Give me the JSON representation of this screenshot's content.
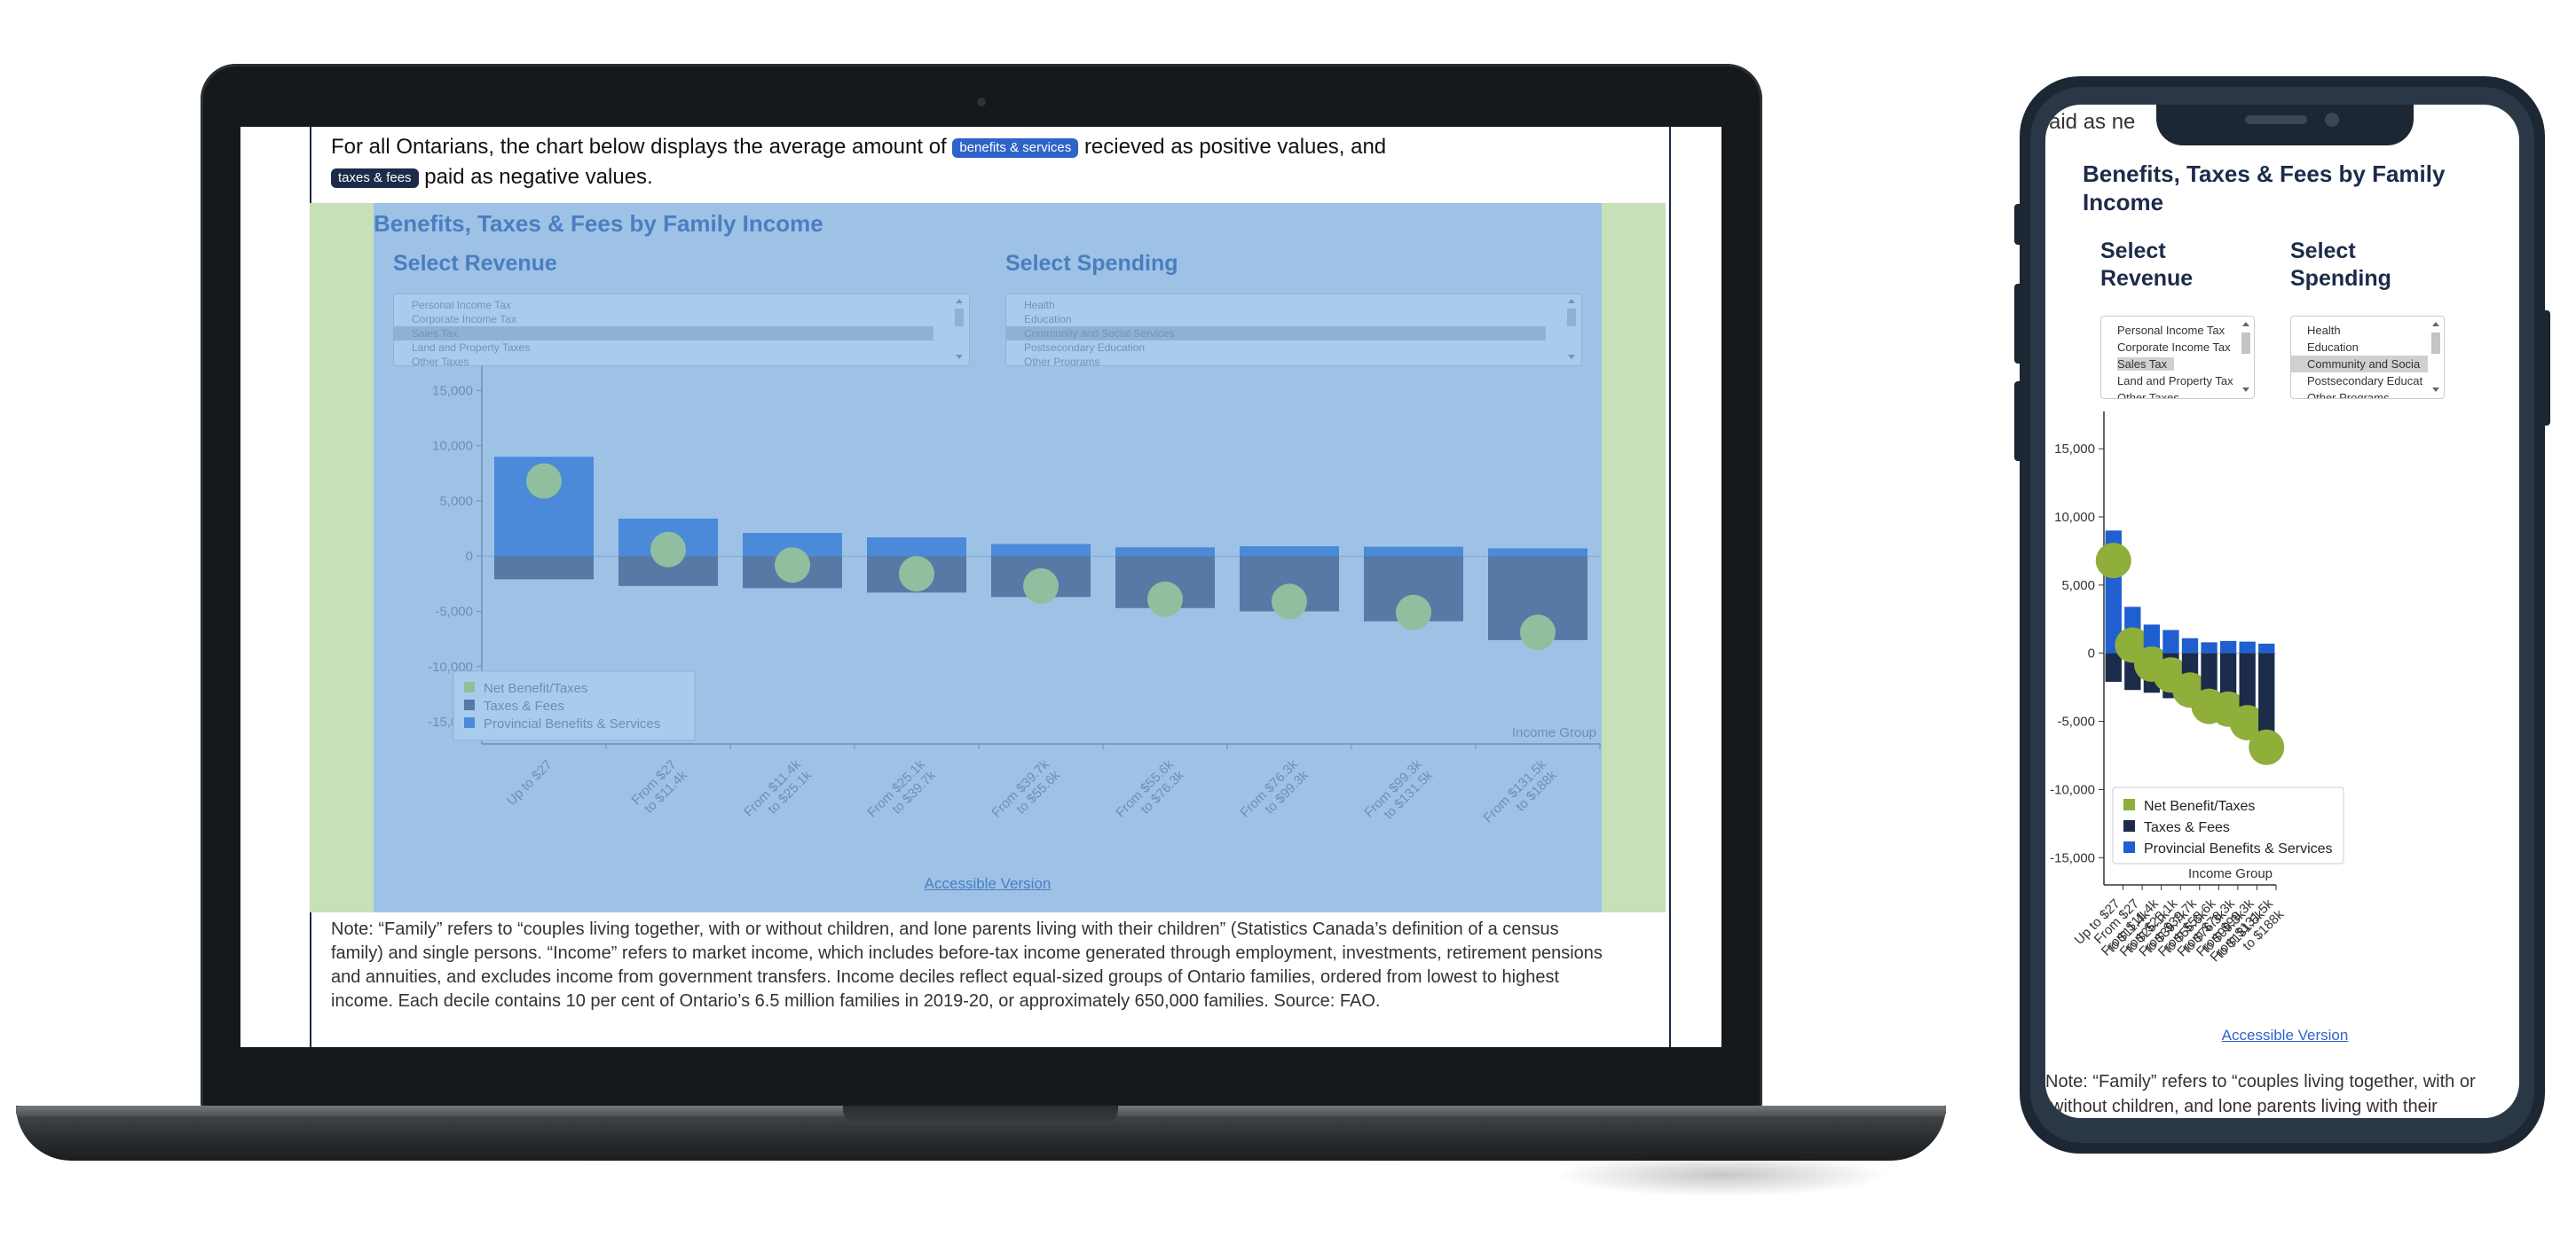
{
  "intro": {
    "p1": "For all Ontarians, the chart below displays the average amount of",
    "badge_benefits": "benefits & services",
    "p2": "recieved as positive values, and",
    "badge_taxes": "taxes & fees",
    "p3": "paid as negative values."
  },
  "chart_title": "Benefits, Taxes & Fees by Family Income",
  "revenue": {
    "label": "Select Revenue",
    "options": [
      "Personal Income Tax",
      "Corporate Income Tax",
      "Sales Tax",
      "Land and Property Taxes",
      "Other Taxes"
    ],
    "selected": "Sales Tax"
  },
  "spending": {
    "label": "Select Spending",
    "options": [
      "Health",
      "Education",
      "Community and Social Services",
      "Postsecondary Education",
      "Other Programs"
    ],
    "selected": "Community and Social Services"
  },
  "phone_revenue_label": [
    "Select",
    "Revenue"
  ],
  "phone_spending_label": [
    "Select",
    "Spending"
  ],
  "phone_title_lines": [
    "Benefits, Taxes & Fees by Family",
    "Income"
  ],
  "phone_spending_options": [
    "Health",
    "Education",
    "Community and Socia",
    "Postsecondary Educat",
    "Other Programs"
  ],
  "phone_revenue_options": [
    "Personal Income Tax",
    "Corporate Income Tax",
    "Sales Tax",
    "Land and Property Tax",
    "Other Taxes"
  ],
  "phone_top_text": "aid as ne",
  "accessible_link": "Accessible Version",
  "note": "Note: “Family” refers to “couples living together, with or without children, and lone parents living with their children” (Statistics Canada’s definition of a census family) and single persons. “Income” refers to market income, which includes before-tax income generated through employment, investments, retirement pensions and annuities, and excludes income from government transfers. Income deciles reflect equal-sized groups of Ontario families, ordered from lowest to highest income. Each decile contains 10 per cent of Ontario’s 6.5 million families in 2019-20, or approximately 650,000 families. Source: FAO.",
  "phone_note_lines": [
    "Note: “Family” refers to “couples living together, with or",
    "without children, and lone parents living with their"
  ],
  "colors": {
    "benefits": "#1f5fcf",
    "taxes": "#1c2b4a",
    "net": "#8fae3a",
    "laptop_benefits": "#4a8ad9",
    "laptop_taxes": "#5779a6",
    "laptop_net": "#8fbf9e"
  },
  "chart_data": {
    "type": "bar",
    "title": "Benefits, Taxes & Fees by Family Income",
    "xlabel": "Income Group",
    "ylabel": "",
    "categories": [
      [
        "Up to $27"
      ],
      [
        "From $27",
        "to $11.4k"
      ],
      [
        "From $11.4k",
        "to $25.1k"
      ],
      [
        "From $25.1k",
        "to $39.7k"
      ],
      [
        "From $39.7k",
        "to $55.6k"
      ],
      [
        "From $55.6k",
        "to $76.3k"
      ],
      [
        "From $76.3k",
        "to $99.3k"
      ],
      [
        "From $99.3k",
        "to $131.5k"
      ],
      [
        "From $131.5k",
        "to $188k"
      ]
    ],
    "series": [
      {
        "name": "Provincial Benefits & Services",
        "values": [
          9000,
          3400,
          2100,
          1700,
          1100,
          800,
          900,
          850,
          700
        ]
      },
      {
        "name": "Taxes & Fees",
        "values": [
          -2100,
          -2700,
          -2900,
          -3300,
          -3700,
          -4700,
          -5000,
          -5900,
          -7600
        ]
      },
      {
        "name": "Net Benefit/Taxes",
        "values": [
          6800,
          600,
          -800,
          -1600,
          -2700,
          -3900,
          -4100,
          -5100,
          -6900
        ]
      }
    ],
    "yticks": [
      15000,
      10000,
      5000,
      0,
      -5000,
      -10000,
      -15000
    ],
    "ytick_labels": [
      "15,000",
      "10,000",
      "5,000",
      "0",
      "-5,000",
      "-10,000",
      "-15,000"
    ],
    "ylim": [
      -17000,
      18000
    ],
    "legend_position": "bottom-left",
    "grid": false
  }
}
